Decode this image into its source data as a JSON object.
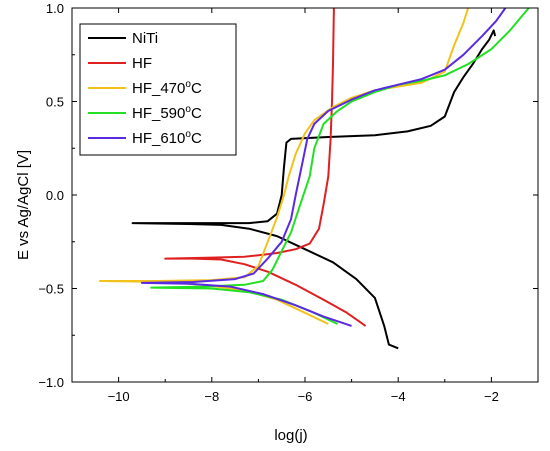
{
  "chart_data": {
    "type": "line",
    "title": "",
    "xlabel": "log(j)",
    "ylabel": "E vs Ag/AgCl [V]",
    "xlim": [
      -11,
      -1
    ],
    "ylim": [
      -1.0,
      1.0
    ],
    "xticks": [
      -10,
      -8,
      -6,
      -4,
      -2
    ],
    "yticks": [
      -1.0,
      -0.5,
      0.0,
      0.5,
      1.0
    ],
    "tick_labels_x": [
      "−10",
      "−8",
      "−6",
      "−4",
      "−2"
    ],
    "tick_labels_y": [
      "−1.0",
      "−0.5",
      "0.0",
      "0.5",
      "1.0"
    ],
    "grid": false,
    "legend_position": "top-left",
    "series": [
      {
        "name": "NiTi",
        "label_base": "NiTi",
        "label_sup": "",
        "label_tail": "",
        "color": "#000000",
        "points": [
          [
            -4.0,
            -0.82
          ],
          [
            -4.2,
            -0.8
          ],
          [
            -4.3,
            -0.7
          ],
          [
            -4.5,
            -0.55
          ],
          [
            -4.9,
            -0.45
          ],
          [
            -5.4,
            -0.36
          ],
          [
            -6.0,
            -0.29
          ],
          [
            -6.6,
            -0.22
          ],
          [
            -7.2,
            -0.18
          ],
          [
            -7.8,
            -0.16
          ],
          [
            -8.5,
            -0.155
          ],
          [
            -9.7,
            -0.15
          ],
          [
            -8.2,
            -0.15
          ],
          [
            -7.2,
            -0.15
          ],
          [
            -6.8,
            -0.14
          ],
          [
            -6.6,
            -0.1
          ],
          [
            -6.5,
            0.0
          ],
          [
            -6.45,
            0.15
          ],
          [
            -6.4,
            0.28
          ],
          [
            -6.3,
            0.3
          ],
          [
            -5.5,
            0.31
          ],
          [
            -4.5,
            0.32
          ],
          [
            -3.8,
            0.34
          ],
          [
            -3.3,
            0.37
          ],
          [
            -3.0,
            0.42
          ],
          [
            -2.8,
            0.55
          ],
          [
            -2.6,
            0.63
          ],
          [
            -2.4,
            0.7
          ],
          [
            -2.2,
            0.78
          ],
          [
            -2.05,
            0.83
          ],
          [
            -1.95,
            0.88
          ],
          [
            -1.92,
            0.85
          ]
        ]
      },
      {
        "name": "HF",
        "label_base": "HF",
        "label_sup": "",
        "label_tail": "",
        "color": "#e02020",
        "points": [
          [
            -4.7,
            -0.7
          ],
          [
            -5.1,
            -0.63
          ],
          [
            -5.6,
            -0.56
          ],
          [
            -6.2,
            -0.48
          ],
          [
            -6.8,
            -0.41
          ],
          [
            -7.3,
            -0.37
          ],
          [
            -7.8,
            -0.345
          ],
          [
            -8.4,
            -0.34
          ],
          [
            -9.0,
            -0.34
          ],
          [
            -8.0,
            -0.335
          ],
          [
            -7.3,
            -0.33
          ],
          [
            -6.9,
            -0.32
          ],
          [
            -6.6,
            -0.31
          ],
          [
            -6.2,
            -0.29
          ],
          [
            -5.9,
            -0.26
          ],
          [
            -5.7,
            -0.18
          ],
          [
            -5.6,
            -0.05
          ],
          [
            -5.5,
            0.1
          ],
          [
            -5.45,
            0.3
          ],
          [
            -5.42,
            0.5
          ],
          [
            -5.4,
            0.7
          ],
          [
            -5.38,
            1.0
          ]
        ]
      },
      {
        "name": "HF_470°C",
        "label_base": "HF_470",
        "label_sup": "o",
        "label_tail": "C",
        "color": "#f2c21b",
        "points": [
          [
            -5.5,
            -0.69
          ],
          [
            -6.0,
            -0.63
          ],
          [
            -6.6,
            -0.56
          ],
          [
            -7.3,
            -0.51
          ],
          [
            -8.2,
            -0.48
          ],
          [
            -9.0,
            -0.465
          ],
          [
            -10.4,
            -0.46
          ],
          [
            -9.2,
            -0.46
          ],
          [
            -8.0,
            -0.455
          ],
          [
            -7.3,
            -0.44
          ],
          [
            -7.0,
            -0.38
          ],
          [
            -6.8,
            -0.25
          ],
          [
            -6.6,
            -0.12
          ],
          [
            -6.45,
            0.0
          ],
          [
            -6.35,
            0.1
          ],
          [
            -6.2,
            0.22
          ],
          [
            -6.0,
            0.33
          ],
          [
            -5.8,
            0.4
          ],
          [
            -5.4,
            0.47
          ],
          [
            -5.0,
            0.52
          ],
          [
            -4.5,
            0.56
          ],
          [
            -4.0,
            0.58
          ],
          [
            -3.5,
            0.6
          ],
          [
            -3.0,
            0.66
          ],
          [
            -2.8,
            0.8
          ],
          [
            -2.6,
            0.92
          ],
          [
            -2.5,
            1.0
          ]
        ]
      },
      {
        "name": "HF_590°C",
        "label_base": "HF_590",
        "label_sup": "o",
        "label_tail": "C",
        "color": "#22e022",
        "points": [
          [
            -5.3,
            -0.69
          ],
          [
            -5.9,
            -0.62
          ],
          [
            -6.5,
            -0.56
          ],
          [
            -7.2,
            -0.52
          ],
          [
            -8.0,
            -0.5
          ],
          [
            -9.3,
            -0.495
          ],
          [
            -8.2,
            -0.49
          ],
          [
            -7.3,
            -0.48
          ],
          [
            -6.9,
            -0.46
          ],
          [
            -6.7,
            -0.4
          ],
          [
            -6.5,
            -0.3
          ],
          [
            -6.3,
            -0.2
          ],
          [
            -6.1,
            -0.05
          ],
          [
            -5.9,
            0.1
          ],
          [
            -5.8,
            0.25
          ],
          [
            -5.6,
            0.38
          ],
          [
            -5.3,
            0.45
          ],
          [
            -5.0,
            0.5
          ],
          [
            -4.5,
            0.55
          ],
          [
            -4.0,
            0.59
          ],
          [
            -3.5,
            0.61
          ],
          [
            -3.0,
            0.64
          ],
          [
            -2.5,
            0.7
          ],
          [
            -2.0,
            0.78
          ],
          [
            -1.6,
            0.88
          ],
          [
            -1.2,
            1.0
          ]
        ]
      },
      {
        "name": "HF_610°C",
        "label_base": "HF_610",
        "label_sup": "o",
        "label_tail": "C",
        "color": "#5a2ae0",
        "points": [
          [
            -5.0,
            -0.7
          ],
          [
            -5.6,
            -0.65
          ],
          [
            -6.2,
            -0.59
          ],
          [
            -6.9,
            -0.53
          ],
          [
            -7.6,
            -0.49
          ],
          [
            -8.5,
            -0.475
          ],
          [
            -9.5,
            -0.47
          ],
          [
            -8.4,
            -0.465
          ],
          [
            -7.5,
            -0.45
          ],
          [
            -7.1,
            -0.42
          ],
          [
            -6.8,
            -0.34
          ],
          [
            -6.5,
            -0.25
          ],
          [
            -6.3,
            -0.13
          ],
          [
            -6.2,
            0.0
          ],
          [
            -6.05,
            0.18
          ],
          [
            -5.95,
            0.3
          ],
          [
            -5.8,
            0.38
          ],
          [
            -5.5,
            0.45
          ],
          [
            -5.0,
            0.51
          ],
          [
            -4.5,
            0.56
          ],
          [
            -4.0,
            0.59
          ],
          [
            -3.5,
            0.62
          ],
          [
            -3.0,
            0.67
          ],
          [
            -2.6,
            0.75
          ],
          [
            -2.2,
            0.85
          ],
          [
            -1.9,
            0.93
          ],
          [
            -1.7,
            1.0
          ]
        ]
      }
    ]
  }
}
